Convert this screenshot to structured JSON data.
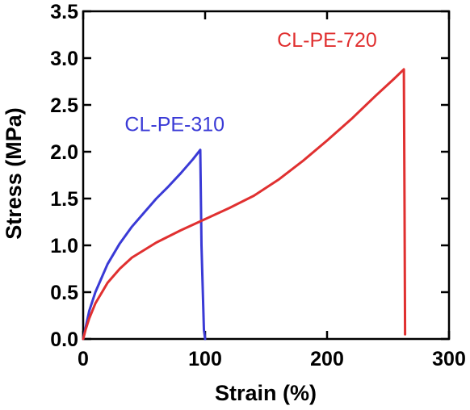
{
  "chart_data": {
    "type": "line",
    "title": "",
    "xlabel": "Strain (%)",
    "ylabel": "Stress (MPa)",
    "xlim": [
      0,
      300
    ],
    "ylim": [
      0,
      3.5
    ],
    "xticks": [
      0,
      100,
      200,
      300
    ],
    "yticks": [
      0.0,
      0.5,
      1.0,
      1.5,
      2.0,
      2.5,
      3.0,
      3.5
    ],
    "xtick_labels": [
      "0",
      "100",
      "200",
      "300"
    ],
    "ytick_labels": [
      "0.0",
      "0.5",
      "1.0",
      "1.5",
      "2.0",
      "2.5",
      "3.0",
      "3.5"
    ],
    "grid": false,
    "legend": "none",
    "series": [
      {
        "name": "CL-PE-310",
        "color": "#3a3ad6",
        "label_anchor": [
          75,
          2.22
        ],
        "x": [
          0,
          2,
          5,
          10,
          20,
          30,
          40,
          50,
          60,
          70,
          80,
          90,
          96,
          97,
          99,
          100
        ],
        "y": [
          0,
          0.12,
          0.3,
          0.5,
          0.8,
          1.02,
          1.2,
          1.35,
          1.5,
          1.63,
          1.77,
          1.92,
          2.02,
          1.0,
          0.1,
          0.0
        ]
      },
      {
        "name": "CL-PE-720",
        "color": "#e03030",
        "label_anchor": [
          200,
          3.12
        ],
        "x": [
          0,
          2,
          5,
          10,
          20,
          30,
          40,
          60,
          80,
          100,
          120,
          140,
          160,
          180,
          200,
          220,
          240,
          255,
          263,
          263.5,
          264
        ],
        "y": [
          0,
          0.1,
          0.22,
          0.38,
          0.6,
          0.75,
          0.87,
          1.03,
          1.16,
          1.28,
          1.4,
          1.53,
          1.7,
          1.9,
          2.12,
          2.35,
          2.6,
          2.78,
          2.88,
          1.5,
          0.05
        ]
      }
    ]
  }
}
